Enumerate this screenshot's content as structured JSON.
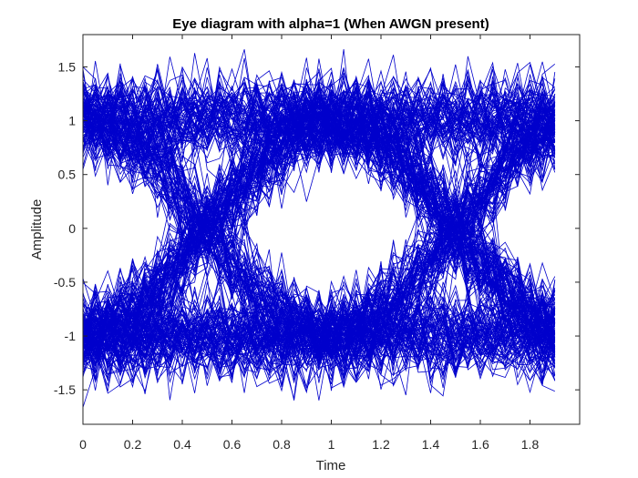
{
  "chart_data": {
    "type": "line",
    "title": "Eye diagram with alpha=1 (When AWGN present)",
    "xlabel": "Time",
    "ylabel": "Amplitude",
    "xlim": [
      0,
      2
    ],
    "ylim": [
      -1.82,
      1.8
    ],
    "xticks": [
      0,
      0.2,
      0.4,
      0.6,
      0.8,
      1,
      1.2,
      1.4,
      1.6,
      1.8
    ],
    "xtick_labels": [
      "0",
      "0.2",
      "0.4",
      "0.6",
      "0.8",
      "1",
      "1.2",
      "1.4",
      "1.6",
      "1.8"
    ],
    "yticks": [
      -1.5,
      -1,
      -0.5,
      0,
      0.5,
      1,
      1.5
    ],
    "ytick_labels": [
      "-1.5",
      "-1",
      "-0.5",
      "0",
      "0.5",
      "1",
      "1.5"
    ],
    "grid": false,
    "line_color": "#0000cc",
    "trace": {
      "x_start": 0,
      "x_end": 1.9,
      "sample_step": 0.05,
      "symbol_period": 1,
      "symbol_levels": [
        -1,
        1
      ],
      "zero_crossings_at": [
        0.5,
        1.5
      ],
      "noise_std": 0.2,
      "trace_count": 300
    }
  }
}
